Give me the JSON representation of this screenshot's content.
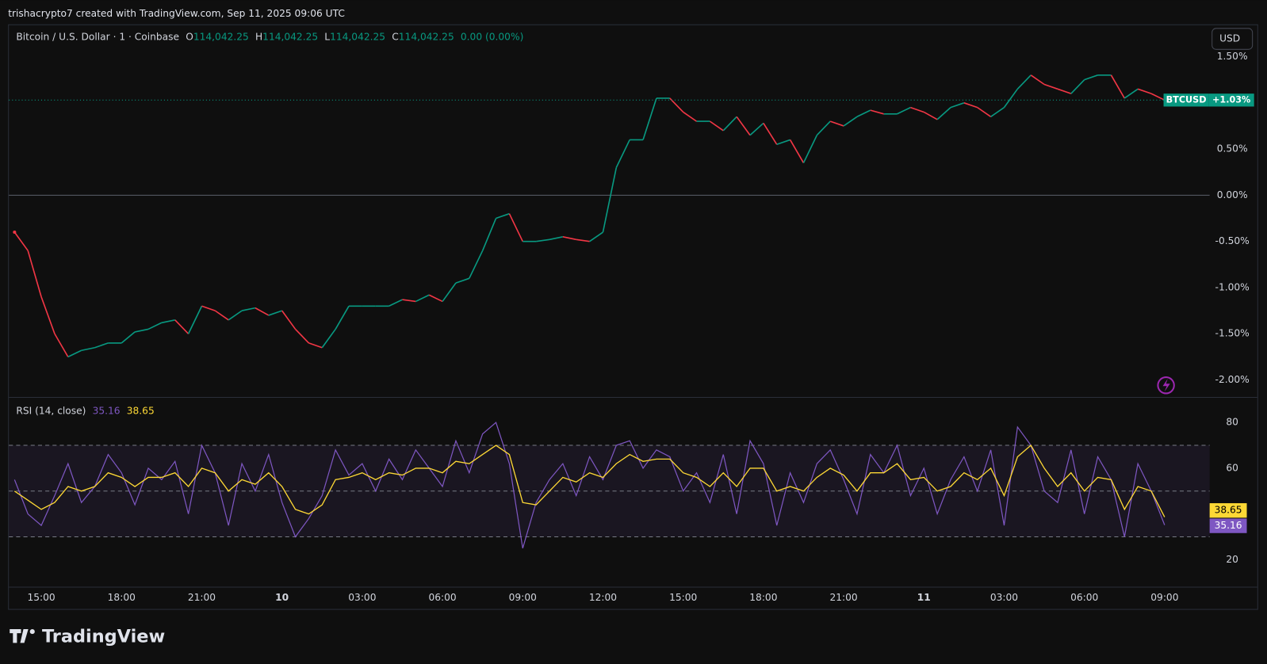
{
  "header": {
    "credit": "trishacrypto7 created with TradingView.com, Sep 11, 2025 09:06 UTC",
    "symbol": "Bitcoin / U.S. Dollar · 1 · Coinbase",
    "ohlc": [
      {
        "key": "O",
        "value": "114,042.25"
      },
      {
        "key": "H",
        "value": "114,042.25"
      },
      {
        "key": "L",
        "value": "114,042.25"
      },
      {
        "key": "C",
        "value": "114,042.25"
      }
    ],
    "change": "0.00 (0.00%)",
    "currency_button": "USD"
  },
  "brand": "TradingView",
  "chart_data": [
    {
      "type": "line",
      "name": "BTCUSD",
      "categories": [
        null,
        null,
        "15:00",
        null,
        null,
        null,
        null,
        null,
        "18:00",
        null,
        null,
        null,
        null,
        null,
        "21:00",
        null,
        null,
        null,
        null,
        null,
        "10",
        null,
        null,
        null,
        null,
        null,
        "03:00",
        null,
        null,
        null,
        null,
        null,
        "06:00",
        null,
        null,
        null,
        null,
        null,
        "09:00",
        null,
        null,
        null,
        null,
        null,
        "12:00",
        null,
        null,
        null,
        null,
        null,
        "15:00",
        null,
        null,
        null,
        null,
        null,
        "18:00",
        null,
        null,
        null,
        null,
        null,
        "21:00",
        null,
        null,
        null,
        null,
        null,
        "11",
        null,
        null,
        null,
        null,
        null,
        "03:00",
        null,
        null,
        null,
        null,
        null,
        "06:00",
        null,
        null,
        null,
        null,
        null,
        "09:00"
      ],
      "values": [
        -0.4,
        -0.6,
        -1.1,
        -1.5,
        -1.75,
        -1.68,
        -1.65,
        -1.6,
        -1.6,
        -1.48,
        -1.45,
        -1.38,
        -1.35,
        -1.5,
        -1.2,
        -1.25,
        -1.35,
        -1.25,
        -1.22,
        -1.3,
        -1.25,
        -1.45,
        -1.6,
        -1.65,
        -1.45,
        -1.2,
        -1.2,
        -1.2,
        -1.2,
        -1.13,
        -1.15,
        -1.08,
        -1.15,
        -0.95,
        -0.9,
        -0.6,
        -0.25,
        -0.2,
        -0.5,
        -0.5,
        -0.48,
        -0.45,
        -0.48,
        -0.5,
        -0.4,
        0.3,
        0.6,
        0.6,
        1.05,
        1.05,
        0.9,
        0.8,
        0.8,
        0.7,
        0.85,
        0.65,
        0.78,
        0.55,
        0.6,
        0.35,
        0.65,
        0.8,
        0.75,
        0.85,
        0.92,
        0.88,
        0.88,
        0.95,
        0.9,
        0.82,
        0.95,
        1.0,
        0.95,
        0.85,
        0.95,
        1.15,
        1.3,
        1.2,
        1.15,
        1.1,
        1.25,
        1.3,
        1.3,
        1.05,
        1.15,
        1.1,
        1.03
      ],
      "last_label": "+1.03%",
      "up_color": "#089981",
      "down_color": "#f23645",
      "baseline": 0,
      "ylim": [
        -2.18,
        1.85
      ],
      "yticks": [
        {
          "value": 1.5,
          "label": "1.50%"
        },
        {
          "value": 0.5,
          "label": "0.50%"
        },
        {
          "value": 0,
          "label": "0.00%"
        },
        {
          "value": -0.5,
          "label": "-0.50%"
        },
        {
          "value": -1,
          "label": "-1.00%"
        },
        {
          "value": -1.5,
          "label": "-1.50%"
        },
        {
          "value": -2,
          "label": "-2.00%"
        }
      ]
    },
    {
      "type": "line",
      "title": "RSI (14, close)",
      "series": [
        {
          "color": "#7e57c2",
          "values": [
            55,
            40,
            35,
            48,
            62,
            45,
            52,
            66,
            58,
            44,
            60,
            55,
            63,
            40,
            70,
            58,
            35,
            62,
            50,
            66,
            45,
            30,
            38,
            48,
            68,
            57,
            62,
            50,
            64,
            55,
            68,
            60,
            52,
            72,
            58,
            75,
            80,
            62,
            25,
            45,
            55,
            62,
            48,
            65,
            55,
            70,
            72,
            60,
            68,
            65,
            50,
            58,
            45,
            66,
            40,
            72,
            62,
            35,
            58,
            45,
            62,
            68,
            55,
            40,
            66,
            58,
            70,
            48,
            60,
            40,
            55,
            65,
            50,
            68,
            35,
            78,
            70,
            50,
            45,
            68,
            40,
            65,
            55,
            30,
            62,
            50,
            35.16
          ]
        },
        {
          "color": "#fdd835",
          "values": [
            50,
            46,
            42,
            45,
            52,
            50,
            52,
            58,
            56,
            52,
            56,
            56,
            58,
            52,
            60,
            58,
            50,
            55,
            53,
            58,
            52,
            42,
            40,
            44,
            55,
            56,
            58,
            55,
            58,
            57,
            60,
            60,
            58,
            63,
            62,
            66,
            70,
            66,
            45,
            44,
            50,
            56,
            54,
            58,
            56,
            62,
            66,
            63,
            64,
            64,
            58,
            56,
            52,
            58,
            52,
            60,
            60,
            50,
            52,
            50,
            56,
            60,
            57,
            50,
            58,
            58,
            62,
            55,
            56,
            50,
            52,
            58,
            55,
            60,
            48,
            65,
            70,
            60,
            52,
            58,
            50,
            56,
            55,
            42,
            52,
            50,
            38.65
          ]
        }
      ],
      "bands": {
        "upper": 70,
        "middle": 50,
        "lower": 30
      },
      "ylim": [
        8,
        90.6
      ],
      "yticks": [
        80,
        60,
        20
      ]
    }
  ]
}
